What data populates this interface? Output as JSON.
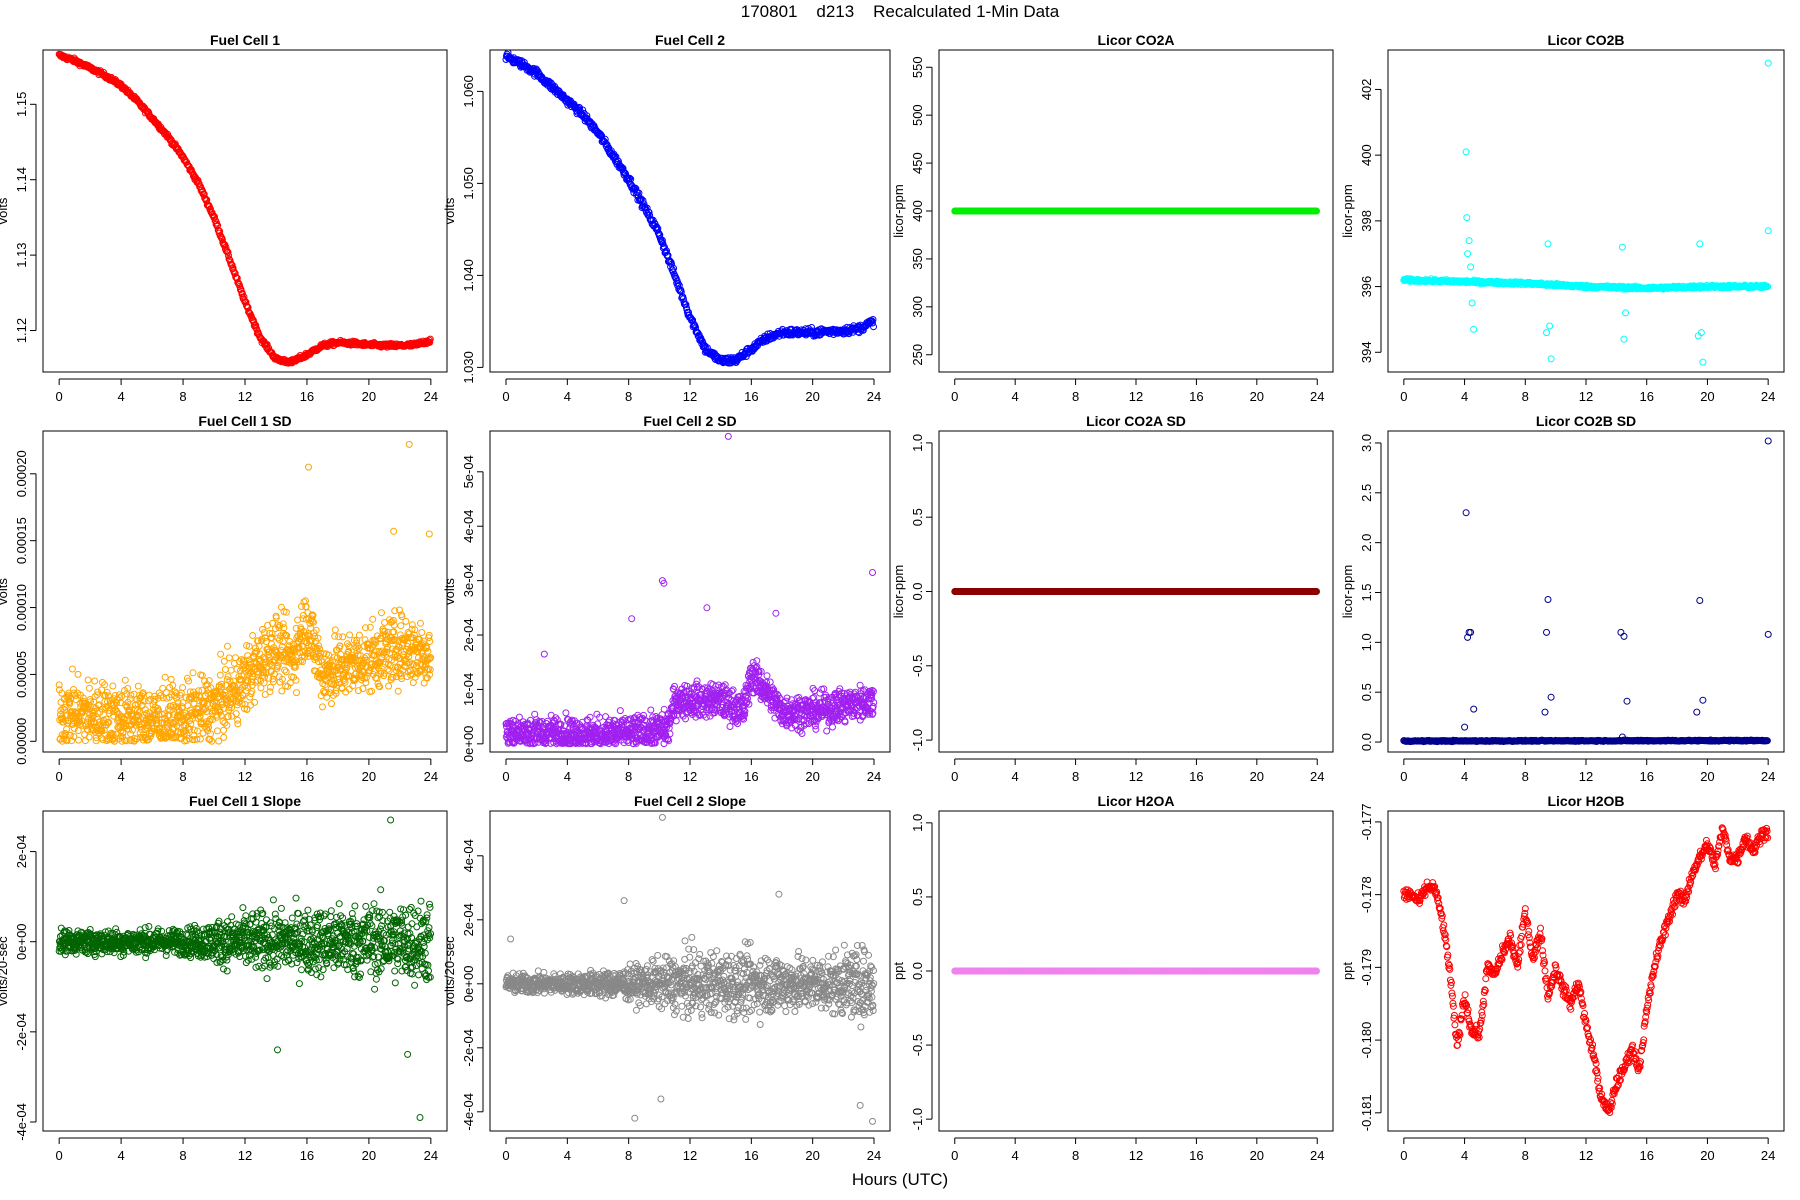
{
  "header": {
    "title": "170801    d213    Recalculated 1-Min Data",
    "xlabel": "Hours (UTC)"
  },
  "chart_data": [
    {
      "type": "scatter",
      "title": "Fuel Cell 1",
      "ylabel": "volts",
      "xlabel": "",
      "color": "#ff0000",
      "xlim": [
        0,
        24
      ],
      "ylim": [
        1.1145,
        1.1572
      ],
      "xticks": [
        "0",
        "4",
        "8",
        "12",
        "16",
        "20",
        "24"
      ],
      "xtick_values": [
        0,
        4,
        8,
        12,
        16,
        20,
        24
      ],
      "yticks": [
        "1.12",
        "1.13",
        "1.14",
        "1.15"
      ],
      "ytick_values": [
        1.12,
        1.13,
        1.14,
        1.15
      ],
      "grid": false,
      "x": [
        0,
        1,
        2,
        3,
        4,
        5,
        6,
        7,
        8,
        9,
        10,
        11,
        12,
        13,
        14,
        15,
        16,
        17,
        18,
        19,
        20,
        21,
        22,
        23,
        24
      ],
      "y": [
        1.1565,
        1.1558,
        1.1548,
        1.1538,
        1.1525,
        1.1505,
        1.1482,
        1.1458,
        1.143,
        1.1395,
        1.135,
        1.1295,
        1.1238,
        1.119,
        1.1162,
        1.1158,
        1.1168,
        1.118,
        1.1184,
        1.1183,
        1.1181,
        1.118,
        1.118,
        1.1181,
        1.1187
      ],
      "noise": 0.0002,
      "mode": "dense"
    },
    {
      "type": "scatter",
      "title": "Fuel Cell 2",
      "ylabel": "volts",
      "xlabel": "",
      "color": "#0000ff",
      "xlim": [
        0,
        24
      ],
      "ylim": [
        1.0295,
        1.0645
      ],
      "xticks": [
        "0",
        "4",
        "8",
        "12",
        "16",
        "20",
        "24"
      ],
      "xtick_values": [
        0,
        4,
        8,
        12,
        16,
        20,
        24
      ],
      "yticks": [
        "1.030",
        "1.040",
        "1.050",
        "1.060"
      ],
      "ytick_values": [
        1.03,
        1.04,
        1.05,
        1.06
      ],
      "grid": false,
      "x": [
        0,
        1,
        2,
        3,
        4,
        5,
        6,
        7,
        8,
        9,
        10,
        11,
        12,
        13,
        14,
        15,
        16,
        17,
        18,
        19,
        20,
        21,
        22,
        23,
        24
      ],
      "y": [
        1.0638,
        1.063,
        1.062,
        1.0605,
        1.059,
        1.0575,
        1.0555,
        1.053,
        1.0505,
        1.0475,
        1.0445,
        1.04,
        1.0355,
        1.032,
        1.0307,
        1.0308,
        1.032,
        1.0332,
        1.0338,
        1.0338,
        1.0338,
        1.0339,
        1.034,
        1.0342,
        1.035
      ],
      "noise": 0.0003,
      "mode": "dense"
    },
    {
      "type": "scatter",
      "title": "Licor CO2A",
      "ylabel": "licor-ppm",
      "xlabel": "",
      "color": "#00ee00",
      "xlim": [
        0,
        24
      ],
      "ylim": [
        232,
        568
      ],
      "xticks": [
        "0",
        "4",
        "8",
        "12",
        "16",
        "20",
        "24"
      ],
      "xtick_values": [
        0,
        4,
        8,
        12,
        16,
        20,
        24
      ],
      "yticks": [
        "250",
        "300",
        "350",
        "400",
        "450",
        "500",
        "550"
      ],
      "ytick_values": [
        250,
        300,
        350,
        400,
        450,
        500,
        550
      ],
      "grid": false,
      "x": [
        0,
        24
      ],
      "y": [
        400,
        400
      ],
      "noise": 0,
      "mode": "line"
    },
    {
      "type": "scatter",
      "title": "Licor CO2B",
      "ylabel": "licor-ppm",
      "xlabel": "",
      "color": "#00ffff",
      "xlim": [
        0,
        24
      ],
      "ylim": [
        393.4,
        403.2
      ],
      "xticks": [
        "0",
        "4",
        "8",
        "12",
        "16",
        "20",
        "24"
      ],
      "xtick_values": [
        0,
        4,
        8,
        12,
        16,
        20,
        24
      ],
      "yticks": [
        "394",
        "396",
        "398",
        "400",
        "402"
      ],
      "ytick_values": [
        394,
        396,
        398,
        400,
        402
      ],
      "grid": false,
      "x": [
        0,
        4,
        8,
        12,
        16,
        20,
        24
      ],
      "y": [
        396.2,
        396.15,
        396.1,
        396.0,
        395.95,
        396.0,
        396.0
      ],
      "noise": 0.03,
      "mode": "dense",
      "outliers_x": [
        4.1,
        4.15,
        4.2,
        4.3,
        4.4,
        4.5,
        4.6,
        9.4,
        9.5,
        9.6,
        9.7,
        14.4,
        14.5,
        14.6,
        19.4,
        19.5,
        19.6,
        19.7,
        24.0,
        24.0
      ],
      "outliers_y": [
        400.1,
        398.1,
        397.0,
        397.4,
        396.6,
        395.5,
        394.7,
        394.6,
        397.3,
        394.8,
        393.8,
        397.2,
        394.4,
        395.2,
        394.5,
        397.3,
        394.6,
        393.7,
        402.8,
        397.7
      ]
    },
    {
      "type": "scatter",
      "title": "Fuel Cell 1 SD",
      "ylabel": "volts",
      "xlabel": "",
      "color": "#ffa500",
      "xlim": [
        0,
        24
      ],
      "ylim": [
        -8e-06,
        0.000232
      ],
      "xticks": [
        "0",
        "4",
        "8",
        "12",
        "16",
        "20",
        "24"
      ],
      "xtick_values": [
        0,
        4,
        8,
        12,
        16,
        20,
        24
      ],
      "yticks": [
        "0.00000",
        "0.00005",
        "0.00010",
        "0.00015",
        "0.00020"
      ],
      "ytick_values": [
        0,
        5e-05,
        0.0001,
        0.00015,
        0.0002
      ],
      "grid": false,
      "x": [
        0,
        2,
        4,
        6,
        8,
        10,
        12,
        13,
        14,
        15,
        16,
        17,
        18,
        20,
        22,
        24
      ],
      "y": [
        2.2e-05,
        2e-05,
        1.8e-05,
        1.6e-05,
        1.8e-05,
        2.5e-05,
        4.5e-05,
        6e-05,
        7e-05,
        6e-05,
        9e-05,
        5e-05,
        5.5e-05,
        6.2e-05,
        7e-05,
        6.5e-05
      ],
      "noise": 1.8e-05,
      "mode": "cloud",
      "count": 1400,
      "outliers_x": [
        16.1,
        22.6,
        21.6,
        23.9
      ],
      "outliers_y": [
        0.000205,
        0.000222,
        0.000157,
        0.000155
      ]
    },
    {
      "type": "scatter",
      "title": "Fuel Cell 2 SD",
      "ylabel": "volts",
      "xlabel": "",
      "color": "#a020f0",
      "xlim": [
        0,
        24
      ],
      "ylim": [
        -1.5e-05,
        0.000575
      ],
      "xticks": [
        "0",
        "4",
        "8",
        "12",
        "16",
        "20",
        "24"
      ],
      "xtick_values": [
        0,
        4,
        8,
        12,
        16,
        20,
        24
      ],
      "yticks": [
        "0e+00",
        "1e-04",
        "2e-04",
        "3e-04",
        "4e-04",
        "5e-04"
      ],
      "ytick_values": [
        0,
        0.0001,
        0.0002,
        0.0003,
        0.0004,
        0.0005
      ],
      "grid": false,
      "x": [
        0,
        2,
        4,
        6,
        8,
        10,
        10.6,
        11,
        12,
        14,
        15.5,
        16,
        18,
        20,
        22,
        24
      ],
      "y": [
        2e-05,
        2e-05,
        2e-05,
        1.8e-05,
        2e-05,
        2.5e-05,
        3e-05,
        8e-05,
        8e-05,
        8e-05,
        6e-05,
        0.00013,
        6e-05,
        6e-05,
        7e-05,
        8e-05
      ],
      "noise": 2.2e-05,
      "mode": "cloud",
      "count": 1400,
      "outliers_x": [
        14.5,
        10.2,
        10.3,
        23.9,
        2.5,
        8.2,
        13.1,
        17.6
      ],
      "outliers_y": [
        0.000565,
        0.0003,
        0.000295,
        0.000315,
        0.000165,
        0.00023,
        0.00025,
        0.00024
      ]
    },
    {
      "type": "scatter",
      "title": "Licor CO2A SD",
      "ylabel": "licor-ppm",
      "xlabel": "",
      "color": "#8b0000",
      "xlim": [
        0,
        24
      ],
      "ylim": [
        -1.08,
        1.08
      ],
      "xticks": [
        "0",
        "4",
        "8",
        "12",
        "16",
        "20",
        "24"
      ],
      "xtick_values": [
        0,
        4,
        8,
        12,
        16,
        20,
        24
      ],
      "yticks": [
        "-1.0",
        "-0.5",
        "0.0",
        "0.5",
        "1.0"
      ],
      "ytick_values": [
        -1,
        -0.5,
        0,
        0.5,
        1
      ],
      "grid": false,
      "x": [
        0,
        24
      ],
      "y": [
        0,
        0
      ],
      "noise": 0,
      "mode": "line"
    },
    {
      "type": "scatter",
      "title": "Licor CO2B SD",
      "ylabel": "licor-ppm",
      "xlabel": "",
      "color": "#00008b",
      "xlim": [
        0,
        24
      ],
      "ylim": [
        -0.1,
        3.12
      ],
      "xticks": [
        "0",
        "4",
        "8",
        "12",
        "16",
        "20",
        "24"
      ],
      "xtick_values": [
        0,
        4,
        8,
        12,
        16,
        20,
        24
      ],
      "yticks": [
        "0.0",
        "0.5",
        "1.0",
        "1.5",
        "2.0",
        "2.5",
        "3.0"
      ],
      "ytick_values": [
        0,
        0.5,
        1,
        1.5,
        2,
        2.5,
        3
      ],
      "grid": false,
      "x": [
        0,
        24
      ],
      "y": [
        0.01,
        0.015
      ],
      "noise": 0.004,
      "mode": "line",
      "outliers_x": [
        4.1,
        4.2,
        4.3,
        4.4,
        4.6,
        9.3,
        9.5,
        9.7,
        14.3,
        14.5,
        14.7,
        19.3,
        19.5,
        19.7,
        24.0,
        24.0,
        4.0,
        9.4,
        14.4
      ],
      "outliers_y": [
        2.3,
        1.05,
        1.1,
        1.1,
        0.33,
        0.3,
        1.43,
        0.45,
        1.1,
        1.06,
        0.41,
        0.3,
        1.42,
        0.42,
        3.02,
        1.08,
        0.15,
        1.1,
        0.05
      ]
    },
    {
      "type": "scatter",
      "title": "Fuel Cell 1 Slope",
      "ylabel": "volts/20-sec",
      "xlabel": "",
      "color": "#006400",
      "xlim": [
        0,
        24
      ],
      "ylim": [
        -0.00042,
        0.00029
      ],
      "xticks": [
        "0",
        "4",
        "8",
        "12",
        "16",
        "20",
        "24"
      ],
      "xtick_values": [
        0,
        4,
        8,
        12,
        16,
        20,
        24
      ],
      "yticks": [
        "-4e-04",
        "-2e-04",
        "0e+00",
        "2e-04"
      ],
      "ytick_values": [
        -0.0004,
        -0.0002,
        0,
        0.0002
      ],
      "grid": false,
      "x": [
        0,
        24
      ],
      "y": [
        0,
        0
      ],
      "noise_profile_x": [
        0,
        4,
        8,
        12,
        16,
        20,
        24
      ],
      "noise_profile": [
        1.8e-05,
        2e-05,
        2e-05,
        4.5e-05,
        5e-05,
        6e-05,
        6.5e-05
      ],
      "mode": "cloud",
      "count": 1400,
      "outliers_x": [
        21.4,
        23.3,
        14.1,
        22.5
      ],
      "outliers_y": [
        0.00027,
        -0.00039,
        -0.00024,
        -0.00025
      ]
    },
    {
      "type": "scatter",
      "title": "Fuel Cell 2 Slope",
      "ylabel": "volts/20-sec",
      "xlabel": "",
      "color": "#888888",
      "xlim": [
        0,
        24
      ],
      "ylim": [
        -0.00046,
        0.00054
      ],
      "xticks": [
        "0",
        "4",
        "8",
        "12",
        "16",
        "20",
        "24"
      ],
      "xtick_values": [
        0,
        4,
        8,
        12,
        16,
        20,
        24
      ],
      "yticks": [
        "-4e-04",
        "-2e-04",
        "0e+00",
        "2e-04",
        "4e-04"
      ],
      "ytick_values": [
        -0.0004,
        -0.0002,
        0,
        0.0002,
        0.0004
      ],
      "grid": false,
      "x": [
        0,
        24
      ],
      "y": [
        0,
        0
      ],
      "noise_profile_x": [
        0,
        4,
        8,
        12,
        16,
        20,
        24
      ],
      "noise_profile": [
        2.2e-05,
        2.2e-05,
        3.5e-05,
        7e-05,
        7e-05,
        6e-05,
        8e-05
      ],
      "mode": "cloud",
      "count": 1400,
      "outliers_x": [
        10.2,
        7.7,
        8.4,
        23.1,
        23.9,
        17.8,
        10.1,
        0.3
      ],
      "outliers_y": [
        0.00052,
        0.00026,
        -0.00042,
        -0.00038,
        -0.00043,
        0.00028,
        -0.00036,
        0.00014
      ]
    },
    {
      "type": "scatter",
      "title": "Licor H2OA",
      "ylabel": "ppt",
      "xlabel": "",
      "color": "#ee82ee",
      "xlim": [
        0,
        24
      ],
      "ylim": [
        -1.08,
        1.08
      ],
      "xticks": [
        "0",
        "4",
        "8",
        "12",
        "16",
        "20",
        "24"
      ],
      "xtick_values": [
        0,
        4,
        8,
        12,
        16,
        20,
        24
      ],
      "yticks": [
        "-1.0",
        "-0.5",
        "0.0",
        "0.5",
        "1.0"
      ],
      "ytick_values": [
        -1,
        -0.5,
        0,
        0.5,
        1
      ],
      "grid": false,
      "x": [
        0,
        24
      ],
      "y": [
        0,
        0
      ],
      "noise": 0,
      "mode": "line"
    },
    {
      "type": "scatter",
      "title": "Licor H2OB",
      "ylabel": "ppt",
      "xlabel": "",
      "color": "#ff0000",
      "xlim": [
        0,
        24
      ],
      "ylim": [
        -0.18125,
        -0.17685
      ],
      "xticks": [
        "0",
        "4",
        "8",
        "12",
        "16",
        "20",
        "24"
      ],
      "xtick_values": [
        0,
        4,
        8,
        12,
        16,
        20,
        24
      ],
      "yticks": [
        "-0.181",
        "-0.180",
        "-0.179",
        "-0.178",
        "-0.177"
      ],
      "ytick_values": [
        -0.181,
        -0.18,
        -0.179,
        -0.178,
        -0.177
      ],
      "grid": false,
      "x": [
        0,
        0.5,
        1,
        1.5,
        2,
        2.5,
        3,
        3.5,
        4,
        4.5,
        5,
        5.5,
        6,
        6.5,
        7,
        7.5,
        8,
        8.5,
        9,
        9.5,
        10,
        10.5,
        11,
        11.5,
        12,
        12.5,
        13,
        13.5,
        14,
        14.5,
        15,
        15.5,
        16,
        16.5,
        17,
        17.5,
        18,
        18.5,
        19,
        19.5,
        20,
        20.5,
        21,
        21.5,
        22,
        22.5,
        23,
        23.5,
        24
      ],
      "y": [
        -0.178,
        -0.178,
        -0.1781,
        -0.1779,
        -0.1779,
        -0.1783,
        -0.179,
        -0.1801,
        -0.1794,
        -0.1799,
        -0.1799,
        -0.179,
        -0.1791,
        -0.1788,
        -0.1786,
        -0.179,
        -0.1782,
        -0.1789,
        -0.1785,
        -0.1794,
        -0.179,
        -0.1793,
        -0.1795,
        -0.1792,
        -0.1798,
        -0.1802,
        -0.1808,
        -0.181,
        -0.1806,
        -0.1804,
        -0.1801,
        -0.1804,
        -0.1796,
        -0.179,
        -0.1786,
        -0.1783,
        -0.178,
        -0.1781,
        -0.1777,
        -0.1775,
        -0.1773,
        -0.1776,
        -0.1771,
        -0.1775,
        -0.1775,
        -0.1772,
        -0.1774,
        -0.1772,
        -0.1771
      ],
      "noise": 6e-05,
      "mode": "dense"
    }
  ]
}
